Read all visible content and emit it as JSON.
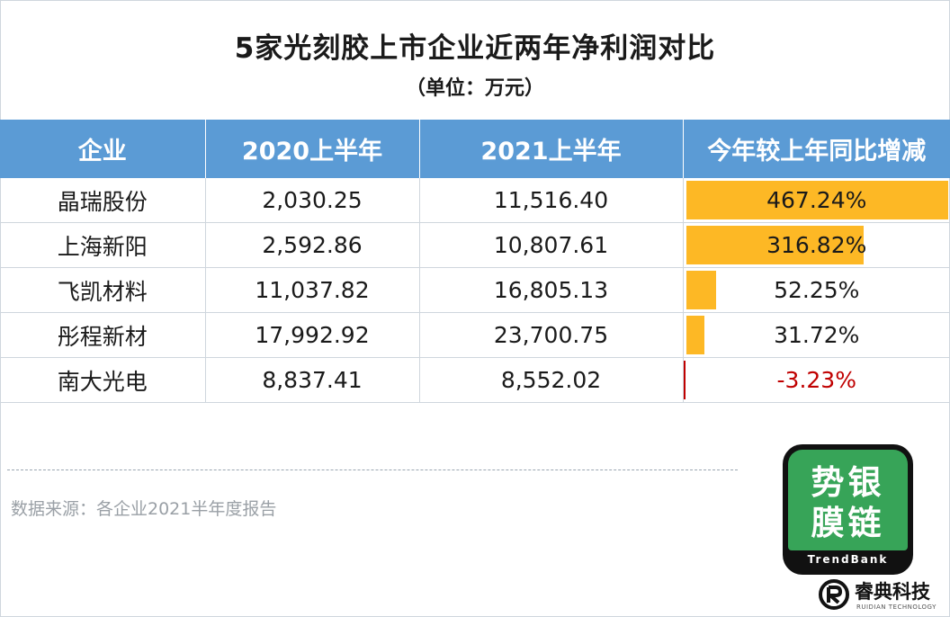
{
  "title": "5家光刻胶上市企业近两年净利润对比",
  "unit": "（单位：万元）",
  "source": "数据来源：各企业2021半年度报告",
  "logo": {
    "line1": "势银",
    "line2": "膜链",
    "en": "TrendBank"
  },
  "brand": {
    "name": "睿典科技",
    "en": "RUIDIAN TECHNOLOGY"
  },
  "colors": {
    "header_bg": "#5b9bd5",
    "bar": "#fdb825",
    "negative": "#c00000",
    "logo_green": "#37a458"
  },
  "chart_data": {
    "type": "table",
    "columns": [
      "企业",
      "2020上半年",
      "2021上半年",
      "今年较上年同比增减"
    ],
    "rows": [
      {
        "company": "晶瑞股份",
        "h1_2020": "2,030.25",
        "h1_2021": "11,516.40",
        "change": "467.24%",
        "change_value": 467.24
      },
      {
        "company": "上海新阳",
        "h1_2020": "2,592.86",
        "h1_2021": "10,807.61",
        "change": "316.82%",
        "change_value": 316.82
      },
      {
        "company": "飞凯材料",
        "h1_2020": "11,037.82",
        "h1_2021": "16,805.13",
        "change": "52.25%",
        "change_value": 52.25
      },
      {
        "company": "彤程新材",
        "h1_2020": "17,992.92",
        "h1_2021": "23,700.75",
        "change": "31.72%",
        "change_value": 31.72
      },
      {
        "company": "南大光电",
        "h1_2020": "8,837.41",
        "h1_2021": "8,552.02",
        "change": "-3.23%",
        "change_value": -3.23
      }
    ]
  }
}
